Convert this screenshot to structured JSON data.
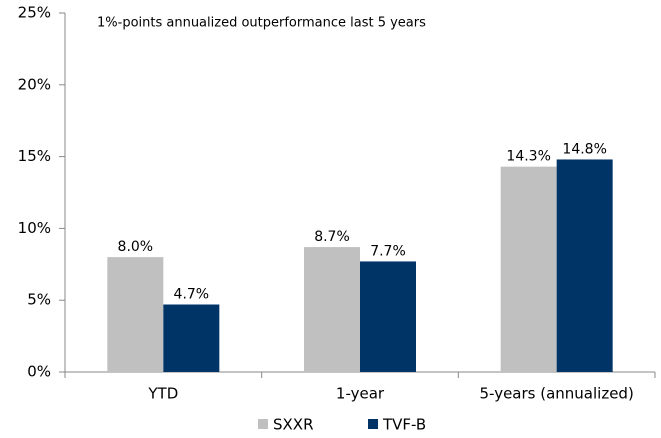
{
  "chart_data": {
    "type": "bar",
    "annotation": "1%-points annualized outperformance last 5 years",
    "categories": [
      "YTD",
      "1-year",
      "5-years (annualized)"
    ],
    "series": [
      {
        "name": "SXXR",
        "color": "#c0c0c0",
        "values": [
          8.0,
          8.7,
          14.3
        ],
        "value_labels": [
          "8.0%",
          "8.7%",
          "14.3%"
        ]
      },
      {
        "name": "TVF-B",
        "color": "#003366",
        "values": [
          4.7,
          7.7,
          14.8
        ],
        "value_labels": [
          "4.7%",
          "7.7%",
          "14.8%"
        ]
      }
    ],
    "ylim": [
      0,
      25
    ],
    "yticks": [
      {
        "value": 0,
        "label": "0%"
      },
      {
        "value": 5,
        "label": "5%"
      },
      {
        "value": 10,
        "label": "10%"
      },
      {
        "value": 15,
        "label": "15%"
      },
      {
        "value": 20,
        "label": "20%"
      },
      {
        "value": 25,
        "label": "25%"
      }
    ],
    "grid": false,
    "legend": "bottom"
  }
}
